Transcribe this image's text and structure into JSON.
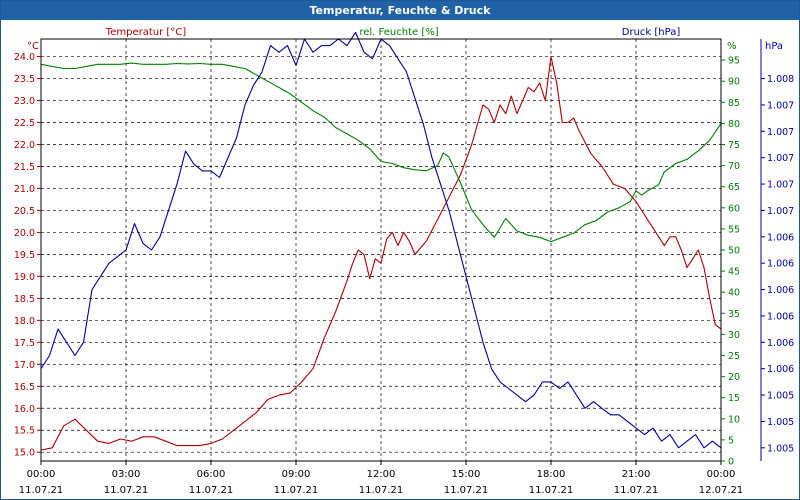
{
  "window": {
    "title": "Temperatur, Feuchte & Druck"
  },
  "colors": {
    "temp": "#b00000",
    "hum": "#008000",
    "pres": "#0000a0",
    "titlebar": "#1f62a5"
  },
  "chart_data": {
    "type": "line",
    "grid": true,
    "x_ticks": [
      {
        "time": "00:00",
        "date": "11.07.21"
      },
      {
        "time": "03:00",
        "date": "11.07.21"
      },
      {
        "time": "06:00",
        "date": "11.07.21"
      },
      {
        "time": "09:00",
        "date": "11.07.21"
      },
      {
        "time": "12:00",
        "date": "11.07.21"
      },
      {
        "time": "15:00",
        "date": "11.07.21"
      },
      {
        "time": "18:00",
        "date": "11.07.21"
      },
      {
        "time": "21:00",
        "date": "11.07.21"
      },
      {
        "time": "00:00",
        "date": "12.07.21"
      }
    ],
    "xlim_hours": [
      0,
      24
    ],
    "axes": {
      "temp": {
        "label": "Temperatur [°C]",
        "unit": "°C",
        "ylim": [
          14.8,
          24.4
        ],
        "ticks": [
          "15.0",
          "15.5",
          "16.0",
          "16.5",
          "17.0",
          "17.5",
          "18.0",
          "18.5",
          "19.0",
          "19.5",
          "20.0",
          "20.5",
          "21.0",
          "21.5",
          "22.0",
          "22.5",
          "23.0",
          "23.5",
          "24.0"
        ]
      },
      "hum": {
        "label": "rel. Feuchte [%]",
        "unit": "%",
        "ylim": [
          0,
          100
        ],
        "ticks": [
          "0",
          "5",
          "10",
          "15",
          "20",
          "25",
          "30",
          "35",
          "40",
          "45",
          "50",
          "55",
          "60",
          "65",
          "70",
          "75",
          "80",
          "85",
          "90",
          "95"
        ]
      },
      "pres": {
        "label": "Druck [hPa]",
        "unit": "hPa",
        "ylim": [
          1004.9,
          1008.1
        ],
        "ticks": [
          "1.005",
          "1.005",
          "1.005",
          "1.006",
          "1.006",
          "1.006",
          "1.006",
          "1.006",
          "1.006",
          "1.007",
          "1.007",
          "1.007",
          "1.007",
          "1.007",
          "1.008"
        ],
        "tick_values": [
          1005.0,
          1005.2,
          1005.4,
          1005.6,
          1005.8,
          1006.0,
          1006.2,
          1006.4,
          1006.6,
          1006.8,
          1007.0,
          1007.2,
          1007.4,
          1007.6,
          1007.8
        ]
      }
    },
    "series": [
      {
        "name": "Temperatur [°C]",
        "axis": "temp",
        "x": [
          0,
          0.4,
          0.8,
          1.2,
          1.6,
          2.0,
          2.4,
          2.8,
          3.2,
          3.6,
          4.0,
          4.4,
          4.8,
          5.2,
          5.6,
          6.0,
          6.4,
          6.8,
          7.2,
          7.6,
          8.0,
          8.4,
          8.8,
          9.2,
          9.6,
          10.0,
          10.4,
          10.8,
          11.0,
          11.2,
          11.4,
          11.6,
          11.8,
          12.0,
          12.2,
          12.4,
          12.6,
          12.8,
          13.0,
          13.2,
          13.6,
          14.0,
          14.4,
          14.8,
          15.2,
          15.6,
          15.8,
          16.0,
          16.2,
          16.4,
          16.6,
          16.8,
          17.0,
          17.2,
          17.4,
          17.6,
          17.8,
          18.0,
          18.2,
          18.4,
          18.6,
          18.8,
          19.0,
          19.4,
          19.8,
          20.2,
          20.6,
          21.0,
          21.4,
          21.8,
          22.0,
          22.2,
          22.4,
          22.6,
          22.8,
          23.0,
          23.2,
          23.4,
          23.6,
          23.8,
          24.0
        ],
        "values": [
          15.05,
          15.1,
          15.6,
          15.75,
          15.5,
          15.25,
          15.2,
          15.3,
          15.25,
          15.35,
          15.35,
          15.25,
          15.15,
          15.15,
          15.15,
          15.2,
          15.3,
          15.5,
          15.7,
          15.9,
          16.2,
          16.3,
          16.35,
          16.6,
          16.9,
          17.6,
          18.2,
          18.9,
          19.3,
          19.6,
          19.5,
          18.95,
          19.4,
          19.3,
          19.85,
          20.0,
          19.7,
          20.0,
          19.8,
          19.5,
          19.8,
          20.3,
          20.8,
          21.3,
          22.0,
          22.9,
          22.8,
          22.5,
          22.9,
          22.7,
          23.1,
          22.7,
          23.0,
          23.3,
          23.2,
          23.4,
          23.0,
          24.0,
          23.4,
          22.5,
          22.5,
          22.6,
          22.3,
          21.8,
          21.5,
          21.1,
          21.0,
          20.7,
          20.3,
          19.9,
          19.7,
          19.9,
          19.9,
          19.6,
          19.2,
          19.4,
          19.6,
          19.2,
          18.5,
          17.9,
          17.8
        ]
      },
      {
        "name": "rel. Feuchte [%]",
        "axis": "hum",
        "x": [
          0,
          0.4,
          0.8,
          1.2,
          1.6,
          2.0,
          2.4,
          2.8,
          3.2,
          3.6,
          4.0,
          4.4,
          4.8,
          5.2,
          5.6,
          6.0,
          6.4,
          6.8,
          7.2,
          7.6,
          8.0,
          8.4,
          8.8,
          9.2,
          9.6,
          10.0,
          10.4,
          10.8,
          11.2,
          11.6,
          12.0,
          12.4,
          12.8,
          13.2,
          13.6,
          14.0,
          14.2,
          14.4,
          14.8,
          15.2,
          15.6,
          16.0,
          16.4,
          16.8,
          17.2,
          17.6,
          18.0,
          18.4,
          18.8,
          19.2,
          19.6,
          20.0,
          20.4,
          20.8,
          21.0,
          21.2,
          21.4,
          21.8,
          22.0,
          22.4,
          22.8,
          23.2,
          23.6,
          24.0
        ],
        "values": [
          94,
          93.5,
          93,
          93,
          93.5,
          94,
          94,
          94,
          94.3,
          94,
          94,
          94,
          94.2,
          94.1,
          94.2,
          94,
          94,
          93.5,
          93,
          91.5,
          90,
          88.5,
          87,
          85,
          83,
          81.5,
          79,
          77.5,
          76,
          74,
          71,
          70.5,
          69.5,
          69,
          68.8,
          70,
          73,
          72,
          66,
          59.5,
          56,
          53,
          57.5,
          54.5,
          53.5,
          53,
          52,
          53,
          54,
          56,
          57,
          59,
          60,
          61.5,
          64,
          63,
          64,
          65.5,
          68.5,
          70.5,
          71.5,
          73.5,
          76,
          80
        ]
      },
      {
        "name": "Druck [hPa]",
        "axis": "pres",
        "x": [
          0,
          0.3,
          0.6,
          0.9,
          1.2,
          1.5,
          1.8,
          2.1,
          2.4,
          2.7,
          3.0,
          3.3,
          3.6,
          3.9,
          4.2,
          4.5,
          4.8,
          5.1,
          5.4,
          5.7,
          6.0,
          6.3,
          6.6,
          6.9,
          7.2,
          7.5,
          7.8,
          8.1,
          8.4,
          8.7,
          9.0,
          9.3,
          9.6,
          9.9,
          10.2,
          10.5,
          10.8,
          11.1,
          11.4,
          11.7,
          12.0,
          12.3,
          12.6,
          12.9,
          13.2,
          13.5,
          13.8,
          14.1,
          14.4,
          14.7,
          15.0,
          15.3,
          15.6,
          15.9,
          16.2,
          16.5,
          16.8,
          17.1,
          17.4,
          17.7,
          18.0,
          18.3,
          18.6,
          18.9,
          19.2,
          19.5,
          19.8,
          20.1,
          20.4,
          20.7,
          21.0,
          21.3,
          21.6,
          21.9,
          22.2,
          22.5,
          22.8,
          23.1,
          23.4,
          23.7,
          24.0
        ],
        "values": [
          1005.6,
          1005.7,
          1005.9,
          1005.8,
          1005.7,
          1005.8,
          1006.2,
          1006.3,
          1006.4,
          1006.45,
          1006.5,
          1006.7,
          1006.55,
          1006.5,
          1006.6,
          1006.8,
          1007.0,
          1007.25,
          1007.15,
          1007.1,
          1007.1,
          1007.05,
          1007.2,
          1007.35,
          1007.6,
          1007.75,
          1007.85,
          1008.05,
          1008.0,
          1008.05,
          1007.9,
          1008.1,
          1008.0,
          1008.05,
          1008.05,
          1008.1,
          1008.05,
          1008.15,
          1008.0,
          1007.95,
          1008.1,
          1008.05,
          1007.95,
          1007.85,
          1007.65,
          1007.45,
          1007.2,
          1007.0,
          1006.8,
          1006.55,
          1006.3,
          1006.05,
          1005.8,
          1005.6,
          1005.5,
          1005.45,
          1005.4,
          1005.35,
          1005.4,
          1005.5,
          1005.5,
          1005.45,
          1005.5,
          1005.4,
          1005.3,
          1005.35,
          1005.3,
          1005.25,
          1005.25,
          1005.2,
          1005.15,
          1005.1,
          1005.15,
          1005.05,
          1005.1,
          1005.0,
          1005.05,
          1005.1,
          1005.0,
          1005.05,
          1005.0
        ]
      }
    ]
  }
}
